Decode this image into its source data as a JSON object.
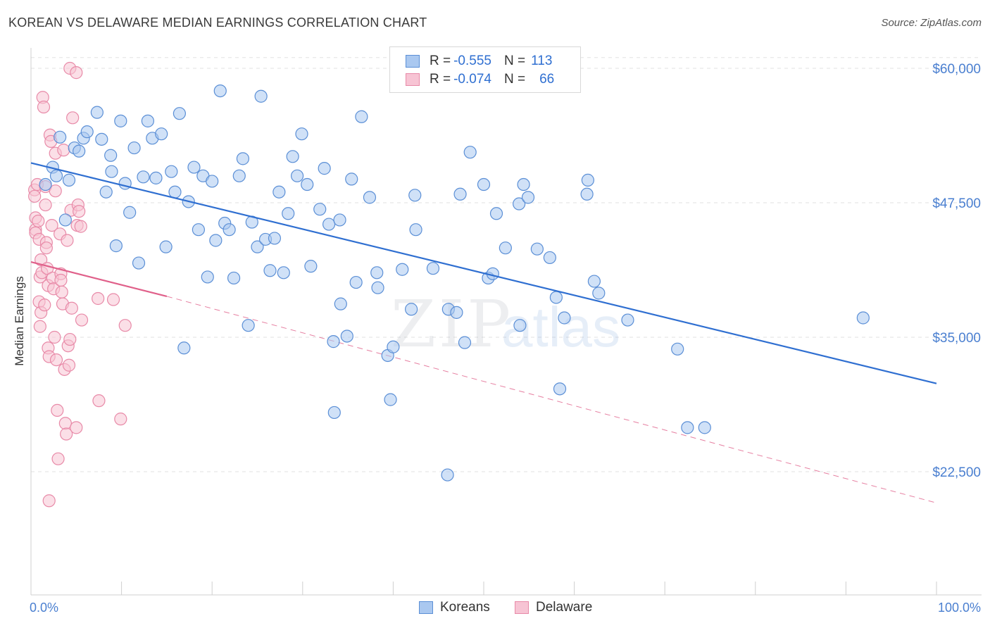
{
  "header": {
    "title": "KOREAN VS DELAWARE MEDIAN EARNINGS CORRELATION CHART",
    "source": "Source: ZipAtlas.com"
  },
  "watermark": {
    "zip": "ZIP",
    "atlas": "atlas"
  },
  "legend": {
    "rows": [
      {
        "r_label": "R =",
        "r_value": "-0.555",
        "n_label": "N =",
        "n_value": "113",
        "color": "#aac8f0",
        "border": "#5b8fd6"
      },
      {
        "r_label": "R =",
        "r_value": "-0.074",
        "n_label": "N =",
        "n_value": "66",
        "color": "#f7c4d4",
        "border": "#e88aa8"
      }
    ]
  },
  "bottom_legend": {
    "koreans": "Koreans",
    "delaware": "Delaware"
  },
  "colors": {
    "blue_fill": "#aac8f0",
    "blue_stroke": "#5b8fd6",
    "blue_line": "#2f6fd1",
    "pink_fill": "#f7c4d4",
    "pink_stroke": "#e88aa8",
    "pink_line": "#e0608a",
    "grid": "#e2e2e2",
    "tick_text": "#4a7fd0"
  },
  "chart_data": {
    "type": "scatter",
    "title": "KOREAN VS DELAWARE MEDIAN EARNINGS CORRELATION CHART",
    "xlabel": "",
    "ylabel": "Median Earnings",
    "xlim": [
      0,
      100
    ],
    "ylim": [
      12000,
      62000
    ],
    "x_tick_labels": [
      {
        "x": 0,
        "label": "0.0%"
      },
      {
        "x": 100,
        "label": "100.0%"
      }
    ],
    "y_ticks": [
      {
        "y": 22500,
        "label": "$22,500"
      },
      {
        "y": 35000,
        "label": "$35,000"
      },
      {
        "y": 47500,
        "label": "$47,500"
      },
      {
        "y": 60000,
        "label": "$60,000"
      }
    ],
    "series": [
      {
        "name": "Koreans",
        "r": -0.555,
        "n": 113,
        "trend": {
          "x0": 0,
          "y0": 51200,
          "x1": 100,
          "y1": 30700
        },
        "points": [
          [
            1.6,
            49.2
          ],
          [
            2.4,
            50.8
          ],
          [
            2.8,
            50.0
          ],
          [
            3.2,
            53.6
          ],
          [
            3.8,
            45.9
          ],
          [
            4.2,
            49.6
          ],
          [
            4.8,
            52.6
          ],
          [
            5.3,
            52.3
          ],
          [
            5.8,
            53.5
          ],
          [
            6.2,
            54.1
          ],
          [
            7.3,
            55.9
          ],
          [
            7.8,
            53.4
          ],
          [
            8.3,
            48.5
          ],
          [
            8.8,
            51.9
          ],
          [
            8.9,
            50.4
          ],
          [
            9.4,
            43.5
          ],
          [
            9.9,
            55.1
          ],
          [
            10.4,
            49.3
          ],
          [
            10.9,
            46.6
          ],
          [
            11.4,
            52.6
          ],
          [
            11.9,
            41.9
          ],
          [
            12.4,
            49.9
          ],
          [
            12.9,
            55.1
          ],
          [
            13.4,
            53.5
          ],
          [
            13.8,
            49.8
          ],
          [
            14.4,
            53.9
          ],
          [
            14.9,
            43.4
          ],
          [
            15.5,
            50.4
          ],
          [
            15.9,
            48.5
          ],
          [
            16.4,
            55.8
          ],
          [
            16.9,
            34.0
          ],
          [
            17.4,
            47.6
          ],
          [
            18.0,
            50.8
          ],
          [
            18.5,
            45.0
          ],
          [
            19.0,
            50.0
          ],
          [
            19.5,
            40.6
          ],
          [
            20.0,
            49.5
          ],
          [
            20.4,
            44.0
          ],
          [
            20.9,
            57.9
          ],
          [
            21.4,
            45.6
          ],
          [
            21.9,
            45.0
          ],
          [
            22.4,
            40.5
          ],
          [
            23.0,
            50.0
          ],
          [
            23.4,
            51.6
          ],
          [
            24.0,
            36.1
          ],
          [
            24.4,
            45.7
          ],
          [
            25.0,
            43.4
          ],
          [
            25.4,
            57.4
          ],
          [
            25.9,
            44.1
          ],
          [
            26.4,
            41.2
          ],
          [
            26.9,
            44.2
          ],
          [
            27.4,
            48.5
          ],
          [
            27.9,
            41.0
          ],
          [
            28.4,
            46.5
          ],
          [
            28.9,
            51.8
          ],
          [
            29.4,
            50.0
          ],
          [
            29.9,
            53.9
          ],
          [
            30.5,
            49.2
          ],
          [
            30.9,
            41.6
          ],
          [
            31.9,
            46.9
          ],
          [
            32.4,
            50.7
          ],
          [
            32.9,
            45.5
          ],
          [
            33.4,
            34.6
          ],
          [
            33.5,
            28.0
          ],
          [
            34.1,
            45.9
          ],
          [
            34.2,
            38.1
          ],
          [
            34.9,
            35.1
          ],
          [
            35.4,
            49.7
          ],
          [
            35.9,
            40.1
          ],
          [
            36.5,
            55.5
          ],
          [
            37.4,
            48.0
          ],
          [
            38.2,
            41.0
          ],
          [
            38.3,
            39.6
          ],
          [
            39.4,
            33.3
          ],
          [
            39.7,
            29.2
          ],
          [
            40.0,
            34.1
          ],
          [
            41.0,
            41.3
          ],
          [
            42.0,
            37.6
          ],
          [
            42.4,
            48.2
          ],
          [
            42.5,
            45.0
          ],
          [
            44.4,
            41.4
          ],
          [
            46.0,
            22.2
          ],
          [
            46.1,
            37.6
          ],
          [
            47.0,
            37.3
          ],
          [
            47.4,
            48.3
          ],
          [
            47.9,
            34.5
          ],
          [
            48.5,
            52.2
          ],
          [
            50.0,
            49.2
          ],
          [
            50.5,
            40.5
          ],
          [
            51.0,
            40.9
          ],
          [
            51.4,
            46.5
          ],
          [
            52.4,
            43.3
          ],
          [
            53.9,
            47.4
          ],
          [
            54.0,
            36.1
          ],
          [
            54.4,
            49.2
          ],
          [
            54.9,
            48.0
          ],
          [
            55.9,
            43.2
          ],
          [
            57.3,
            42.4
          ],
          [
            58.0,
            38.7
          ],
          [
            58.4,
            30.2
          ],
          [
            58.9,
            36.8
          ],
          [
            61.4,
            48.3
          ],
          [
            61.5,
            49.6
          ],
          [
            62.2,
            40.2
          ],
          [
            62.7,
            39.1
          ],
          [
            65.9,
            36.6
          ],
          [
            71.4,
            33.9
          ],
          [
            72.5,
            26.6
          ],
          [
            74.4,
            26.6
          ],
          [
            91.9,
            36.8
          ]
        ]
      },
      {
        "name": "Delaware",
        "r": -0.074,
        "n": 66,
        "trend": {
          "x0": 0,
          "y0": 42000,
          "x1": 15,
          "y1": 38800
        },
        "trend_extension": {
          "x0": 15,
          "y0": 38800,
          "x1": 100,
          "y1": 19600
        },
        "points": [
          [
            0.4,
            48.7
          ],
          [
            0.4,
            48.1
          ],
          [
            0.5,
            46.1
          ],
          [
            0.5,
            45.0
          ],
          [
            0.5,
            44.7
          ],
          [
            0.7,
            49.2
          ],
          [
            0.8,
            45.8
          ],
          [
            0.9,
            44.1
          ],
          [
            0.9,
            38.3
          ],
          [
            1.0,
            40.6
          ],
          [
            1.0,
            36.0
          ],
          [
            1.1,
            42.2
          ],
          [
            1.1,
            37.3
          ],
          [
            1.2,
            41.0
          ],
          [
            1.3,
            57.3
          ],
          [
            1.4,
            56.4
          ],
          [
            1.5,
            38.0
          ],
          [
            1.6,
            49.0
          ],
          [
            1.6,
            47.3
          ],
          [
            1.7,
            43.8
          ],
          [
            1.7,
            43.3
          ],
          [
            1.8,
            41.4
          ],
          [
            1.9,
            39.8
          ],
          [
            1.9,
            34.0
          ],
          [
            2.0,
            33.2
          ],
          [
            2.0,
            19.8
          ],
          [
            2.1,
            53.8
          ],
          [
            2.2,
            53.2
          ],
          [
            2.3,
            45.4
          ],
          [
            2.4,
            40.5
          ],
          [
            2.5,
            39.5
          ],
          [
            2.6,
            35.0
          ],
          [
            2.7,
            52.1
          ],
          [
            2.7,
            48.6
          ],
          [
            2.8,
            32.9
          ],
          [
            2.9,
            28.2
          ],
          [
            3.0,
            23.7
          ],
          [
            3.2,
            44.6
          ],
          [
            3.3,
            40.9
          ],
          [
            3.3,
            40.3
          ],
          [
            3.4,
            39.2
          ],
          [
            3.5,
            38.1
          ],
          [
            3.6,
            52.4
          ],
          [
            3.7,
            32.0
          ],
          [
            3.8,
            27.0
          ],
          [
            3.9,
            26.0
          ],
          [
            4.0,
            44.0
          ],
          [
            4.1,
            34.2
          ],
          [
            4.2,
            32.4
          ],
          [
            4.3,
            34.8
          ],
          [
            4.3,
            60.0
          ],
          [
            4.4,
            46.8
          ],
          [
            4.5,
            37.7
          ],
          [
            4.6,
            55.4
          ],
          [
            5.0,
            26.6
          ],
          [
            5.0,
            59.6
          ],
          [
            5.1,
            45.4
          ],
          [
            5.2,
            47.3
          ],
          [
            5.3,
            46.7
          ],
          [
            5.5,
            45.3
          ],
          [
            5.6,
            36.6
          ],
          [
            7.4,
            38.6
          ],
          [
            7.5,
            29.1
          ],
          [
            9.1,
            38.5
          ],
          [
            9.9,
            27.4
          ],
          [
            10.4,
            36.1
          ]
        ]
      }
    ]
  }
}
